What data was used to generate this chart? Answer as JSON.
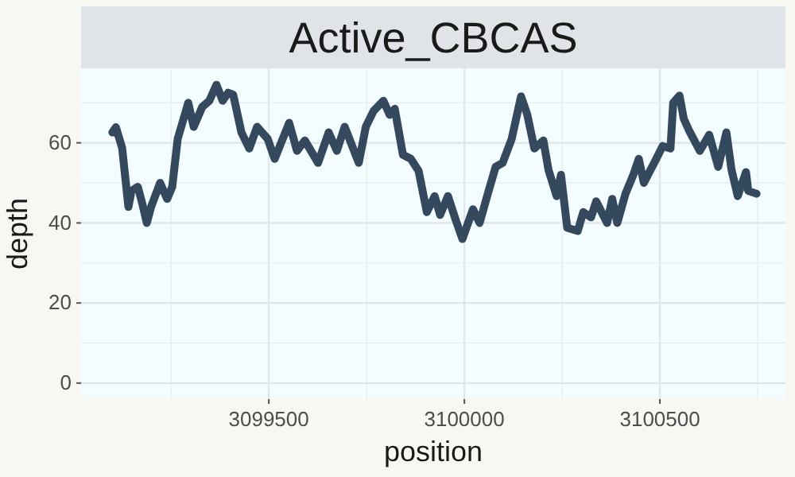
{
  "chart_data": {
    "type": "line",
    "title": "Active_CBCAS",
    "xlabel": "position",
    "ylabel": "depth",
    "xlim": [
      3099020,
      3100821
    ],
    "xticks": [
      3099500,
      3100000,
      3100500
    ],
    "ylim": [
      -4,
      78.6
    ],
    "yticks": [
      0,
      20,
      40,
      60
    ],
    "grid": true,
    "line_style": "solid",
    "marker": "none",
    "series": [
      {
        "color": "#34495e",
        "x": [
          3099100,
          3099109,
          3099125,
          3099141,
          3099149,
          3099165,
          3099176,
          3099188,
          3099199,
          3099222,
          3099240,
          3099253,
          3099267,
          3099294,
          3099308,
          3099330,
          3099348,
          3099366,
          3099382,
          3099396,
          3099409,
          3099430,
          3099450,
          3099470,
          3099497,
          3099515,
          3099552,
          3099572,
          3099592,
          3099626,
          3099653,
          3099674,
          3099694,
          3099730,
          3099748,
          3099768,
          3099793,
          3099809,
          3099822,
          3099843,
          3099863,
          3099883,
          3099904,
          3099924,
          3099938,
          3099958,
          3099978,
          3099995,
          3100022,
          3100039,
          3100060,
          3100080,
          3100098,
          3100121,
          3100145,
          3100161,
          3100179,
          3100202,
          3100215,
          3100236,
          3100247,
          3100263,
          3100290,
          3100304,
          3100324,
          3100337,
          3100365,
          3100378,
          3100391,
          3100412,
          3100432,
          3100446,
          3100459,
          3100473,
          3100487,
          3100507,
          3100527,
          3100534,
          3100550,
          3100561,
          3100574,
          3100602,
          3100626,
          3100649,
          3100670,
          3100683,
          3100699,
          3100720,
          3100726,
          3100747
        ],
        "values": [
          62.6,
          63.9,
          58.7,
          44,
          48,
          49,
          45,
          40,
          44,
          50,
          46,
          49,
          61,
          70,
          64,
          69,
          70.5,
          74.5,
          70.5,
          72.5,
          72,
          62.6,
          58.6,
          64,
          61,
          56,
          65,
          58,
          60.6,
          55,
          62.6,
          58,
          64,
          55,
          64,
          68,
          70.5,
          67,
          68.5,
          57,
          56,
          53,
          42.7,
          46.7,
          42,
          46.7,
          40.7,
          36,
          43.4,
          40,
          47.3,
          54,
          55,
          61,
          71.6,
          67,
          58.6,
          60.6,
          53.3,
          46.7,
          52,
          38.8,
          38,
          42.7,
          41.4,
          45.4,
          40,
          46,
          40,
          47.3,
          52,
          56,
          50,
          52.7,
          55.3,
          59.2,
          58.6,
          70,
          71.8,
          66,
          63.2,
          58,
          62,
          54,
          62.6,
          53.3,
          46.7,
          52.7,
          48,
          47.3
        ]
      }
    ]
  }
}
